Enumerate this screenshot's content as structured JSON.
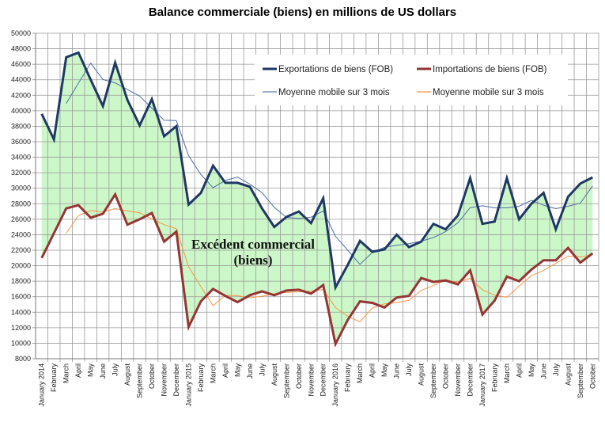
{
  "chart_data": {
    "type": "line",
    "title": "Balance commerciale (biens) en millions de US dollars",
    "xlabel": "",
    "ylabel": "",
    "ylim": [
      8000,
      50000
    ],
    "ytick_step": 2000,
    "grid": true,
    "legend_position": "top-right",
    "annotation": [
      "Excédent commercial",
      "(biens)"
    ],
    "fill_between": {
      "upper": "Exportations de biens (FOB)",
      "lower": "Importations de biens (FOB)",
      "color": "#ccf7c8"
    },
    "categories": [
      "January 2014",
      "February",
      "March",
      "April",
      "May",
      "June",
      "July",
      "August",
      "September",
      "October",
      "November",
      "December",
      "January 2015",
      "February",
      "March",
      "April",
      "May",
      "June",
      "July",
      "August",
      "September",
      "October",
      "November",
      "December",
      "January 2016",
      "February",
      "March",
      "April",
      "May",
      "June",
      "July",
      "August",
      "September",
      "October",
      "November",
      "December",
      "January 2017",
      "February",
      "March",
      "April",
      "May",
      "June",
      "July",
      "August",
      "September",
      "October"
    ],
    "series": [
      {
        "name": "Exportations de biens (FOB)",
        "color": "#1f3864",
        "style": "thick",
        "values": [
          39600,
          36300,
          46900,
          47500,
          44000,
          40600,
          46200,
          41400,
          38100,
          41500,
          36700,
          38000,
          27900,
          29400,
          32900,
          30700,
          30700,
          30200,
          27400,
          25000,
          26300,
          27000,
          25500,
          28700,
          17200,
          20100,
          23200,
          21800,
          22100,
          24000,
          22400,
          23100,
          25400,
          24700,
          26500,
          31300,
          25400,
          25700,
          31300,
          26000,
          28000,
          29400,
          24700,
          28900,
          30600,
          31400
        ]
      },
      {
        "name": "Importations de biens (FOB)",
        "color": "#943634",
        "style": "thick",
        "values": [
          21000,
          24200,
          27400,
          27800,
          26200,
          26700,
          29200,
          25300,
          26000,
          26800,
          23100,
          24400,
          12100,
          15400,
          17000,
          16100,
          15300,
          16200,
          16700,
          16200,
          16800,
          16900,
          16400,
          17500,
          9900,
          13000,
          15400,
          15200,
          14600,
          15900,
          16100,
          18400,
          17900,
          18100,
          17600,
          19400,
          13700,
          15500,
          18600,
          18000,
          19500,
          20700,
          20700,
          22300,
          20400,
          21600
        ]
      },
      {
        "name": "Moyenne mobile sur 3 mois",
        "color": "#4f6fa8",
        "style": "thin",
        "moving_average_of": "Exportations de biens (FOB)",
        "window": 3
      },
      {
        "name": "Moyenne mobile sur 3 mois",
        "color": "#f79646",
        "style": "thin",
        "moving_average_of": "Importations de biens (FOB)",
        "window": 3
      }
    ]
  }
}
